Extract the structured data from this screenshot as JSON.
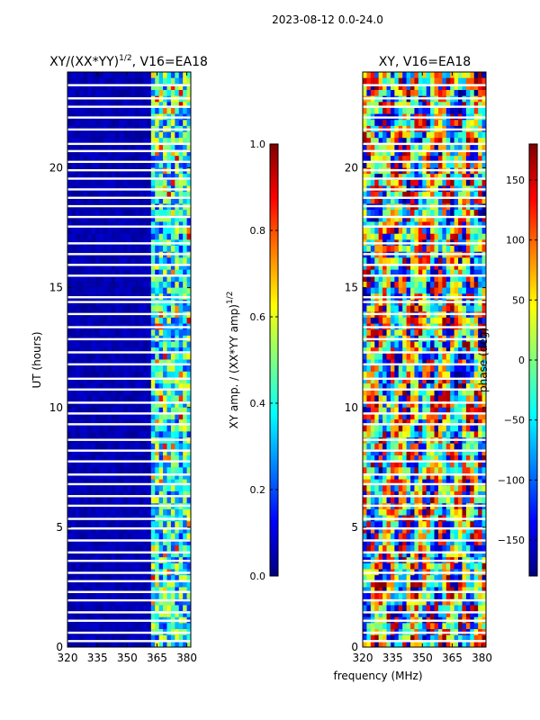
{
  "suptitle": "2023-08-12 0.0-24.0",
  "colors": {
    "jet": [
      "#00007f",
      "#0000ff",
      "#007fff",
      "#00ffff",
      "#7fff7f",
      "#ffff00",
      "#ff7f00",
      "#ff0000",
      "#7f0000"
    ],
    "line": "#000000",
    "background": "#ffffff"
  },
  "chart_data": [
    {
      "type": "heatmap",
      "title": "XY/(XX*YY)^1/2, V16=EA18",
      "title_main": "XY/(XX*YY)",
      "title_exp": "1/2",
      "title_rest": ", V16=EA18",
      "xlabel": "frequency (MHz)",
      "ylabel": "UT (hours)",
      "xlim": [
        320,
        382
      ],
      "ylim": [
        0,
        24
      ],
      "xticks": [
        320,
        335,
        350,
        365,
        380
      ],
      "yticks": [
        0,
        5,
        10,
        15,
        20
      ],
      "colorbar": {
        "label": "XY amp. / (XX*YY amp)^1/2",
        "label_main": "XY amp. / (XX*YY amp)",
        "label_exp": "1/2",
        "range": [
          0.0,
          1.0
        ],
        "ticks": [
          "0.0",
          "0.2",
          "0.4",
          "0.6",
          "0.8",
          "1.0"
        ],
        "tick_values": [
          0.0,
          0.2,
          0.4,
          0.6,
          0.8,
          1.0
        ]
      },
      "description_values": {
        "low_band_mean": 0.05,
        "high_band_mean": 0.35,
        "high_band_start_mhz": 363
      }
    },
    {
      "type": "heatmap",
      "title": "XY, V16=EA18",
      "xlabel": "frequency (MHz)",
      "ylabel": "",
      "xlim": [
        320,
        382
      ],
      "ylim": [
        0,
        24
      ],
      "xticks": [
        320,
        335,
        350,
        365,
        380
      ],
      "yticks": [
        0,
        5,
        10,
        15,
        20
      ],
      "colorbar": {
        "label": "phase (deg)",
        "range": [
          -180,
          180
        ],
        "ticks": [
          "−150",
          "−100",
          "−50",
          "0",
          "50",
          "100",
          "150"
        ],
        "tick_values": [
          -150,
          -100,
          -50,
          0,
          50,
          100,
          150
        ]
      }
    }
  ],
  "gap_hours": [
    23.45,
    22.9,
    22.55,
    22.1,
    21.6,
    21.0,
    20.7,
    20.25,
    19.9,
    19.55,
    19.1,
    18.75,
    18.4,
    17.95,
    17.55,
    16.85,
    16.4,
    15.95,
    15.5,
    14.6,
    14.4,
    13.9,
    13.35,
    12.85,
    12.3,
    11.8,
    11.2,
    10.75,
    10.2,
    9.75,
    9.3,
    8.65,
    8.2,
    7.75,
    7.2,
    6.8,
    6.3,
    5.9,
    5.35,
    4.95,
    4.45,
    3.95,
    3.6,
    3.1,
    2.75,
    2.3,
    1.95,
    1.45,
    1.1,
    0.6,
    0.25
  ],
  "xlabel_shared": "frequency (MHz)"
}
